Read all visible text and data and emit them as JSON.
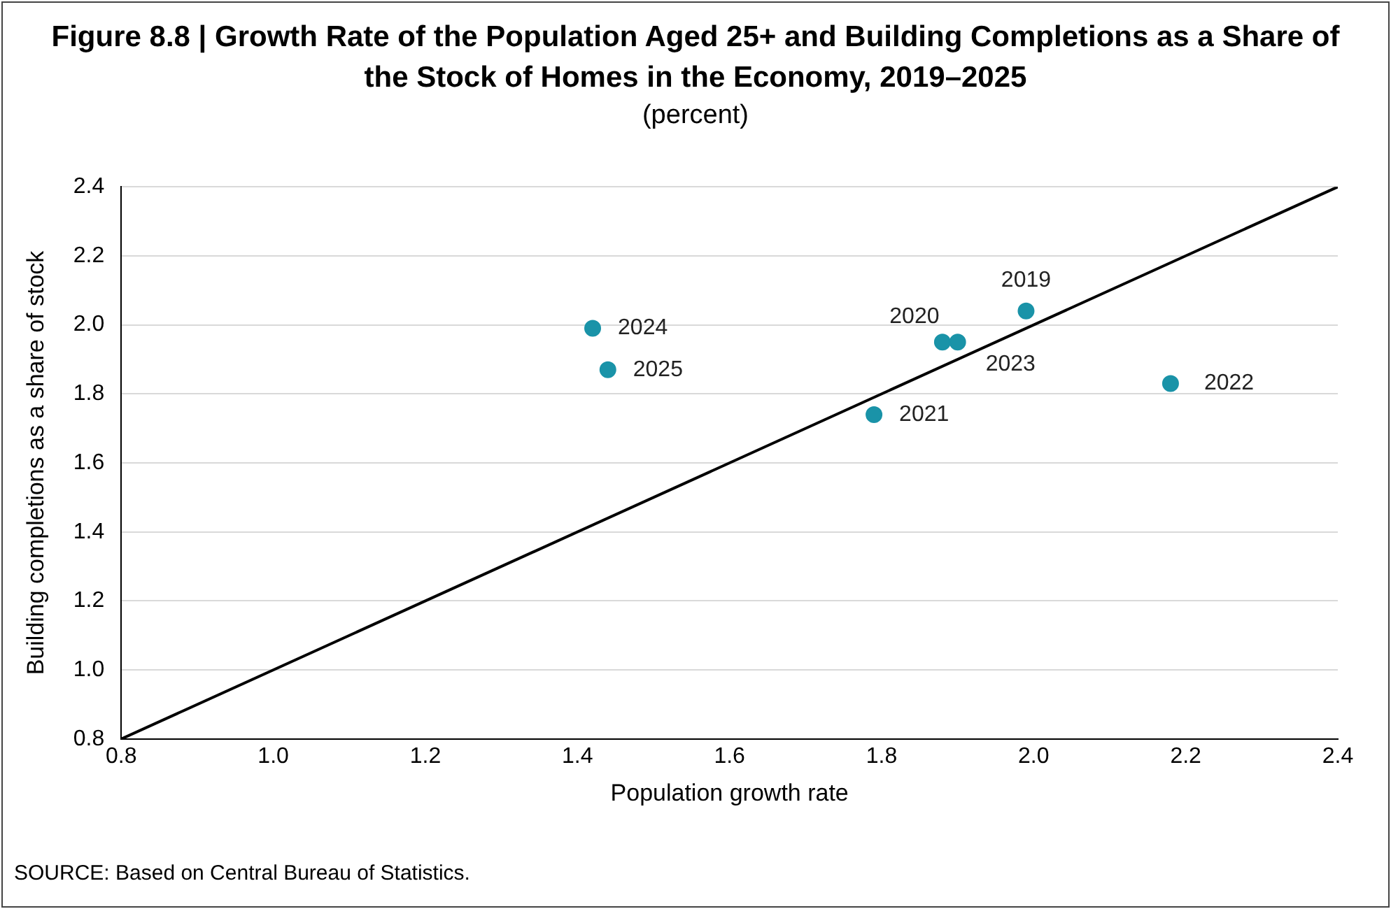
{
  "chart_data": {
    "type": "scatter",
    "title": "Figure 8.8 | Growth Rate of the Population Aged 25+ and Building Completions as a Share of the Stock of Homes in the Economy, 2019–2025",
    "subtitle": "(percent)",
    "xlabel": "Population growth rate",
    "ylabel": "Building completions as a share of stock",
    "series": [
      {
        "type": "scatter",
        "marker": "circle",
        "color": "#1a93a8",
        "x": [
          1.99,
          1.88,
          1.79,
          2.18,
          1.9,
          1.42,
          1.44
        ],
        "values": [
          2.04,
          1.95,
          1.74,
          1.83,
          1.95,
          1.99,
          1.87
        ]
      },
      {
        "type": "line",
        "marker": "none",
        "color": "#000000",
        "x": [
          0.8,
          2.4
        ],
        "values": [
          0.8,
          2.4
        ]
      }
    ],
    "xlim": [
      0.8,
      2.4
    ],
    "xticks": [
      0.8,
      {
        "value": 1,
        "label": "1.0"
      },
      1.2,
      1.4,
      1.6,
      1.8,
      {
        "value": 2,
        "label": "2.0"
      },
      2.2,
      2.4
    ],
    "ylim": [
      0.8,
      2.4
    ],
    "yticks": [
      0.8,
      {
        "value": 1,
        "label": "1.0"
      },
      1.2,
      1.4,
      1.6,
      1.8,
      {
        "value": 2,
        "label": "2.0"
      },
      2.2,
      2.4
    ],
    "grid": "y",
    "legend": false,
    "annotations": [
      {
        "text": "2019",
        "x": 1.99,
        "y": 2.04
      },
      {
        "text": "2020",
        "x": 1.88,
        "y": 1.95
      },
      {
        "text": "2021",
        "x": 1.79,
        "y": 1.74
      },
      {
        "text": "2022",
        "x": 2.18,
        "y": 1.83
      },
      {
        "text": "2023",
        "x": 1.9,
        "y": 1.95
      },
      {
        "text": "2024",
        "x": 1.42,
        "y": 1.99
      },
      {
        "text": "2025",
        "x": 1.44,
        "y": 1.87
      },
      "SOURCE: Based on Central Bureau of Statistics."
    ]
  }
}
